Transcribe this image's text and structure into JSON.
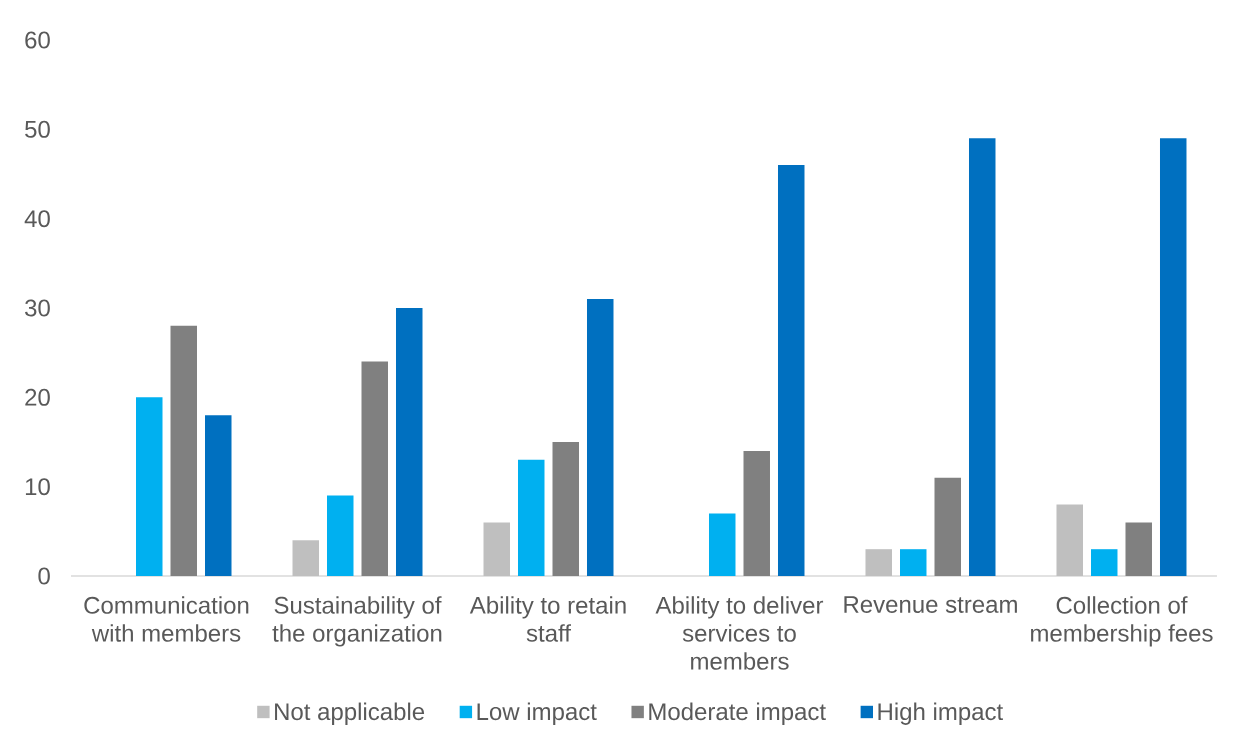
{
  "chart_data": {
    "type": "bar",
    "categories": [
      "Communication with members",
      "Sustainability of the organization",
      "Ability to retain staff",
      "Ability to deliver services to members",
      "Revenue stream",
      "Collection of membership fees"
    ],
    "series": [
      {
        "name": "Not applicable",
        "color": "#bfbfbf",
        "values": [
          0,
          4,
          6,
          0,
          3,
          8
        ]
      },
      {
        "name": "Low impact",
        "color": "#00b0f0",
        "values": [
          20,
          9,
          13,
          7,
          3,
          3
        ]
      },
      {
        "name": "Moderate impact",
        "color": "#808080",
        "values": [
          28,
          24,
          15,
          14,
          11,
          6
        ]
      },
      {
        "name": "High impact",
        "color": "#0070c0",
        "values": [
          18,
          30,
          31,
          46,
          49,
          49
        ]
      }
    ],
    "ylim": [
      0,
      60
    ],
    "yticks": [
      0,
      10,
      20,
      30,
      40,
      50,
      60
    ],
    "grid": false,
    "legend": "bottom"
  }
}
